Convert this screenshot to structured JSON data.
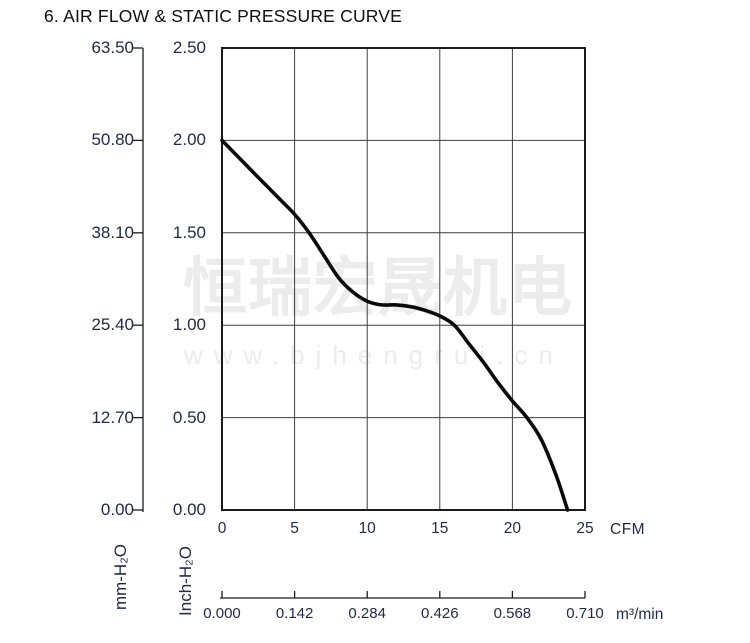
{
  "title": "6. AIR FLOW & STATIC PRESSURE CURVE",
  "watermark": {
    "line1": "恒瑞宏晟机电",
    "line2": "www.bjhengrui.cn"
  },
  "colors": {
    "text": "#222b47",
    "axis_line": "#1c1c1c",
    "grid_line": "#3f3f3f",
    "curve": "#0a0a0a",
    "watermark": "#ececec"
  },
  "chart_data": {
    "type": "line",
    "title": "6. AIR FLOW & STATIC PRESSURE CURVE",
    "grid": true,
    "legend": false,
    "x_axis_primary": {
      "label": "CFM",
      "ticks": [
        "0",
        "5",
        "10",
        "15",
        "20",
        "25"
      ],
      "range": [
        0,
        25
      ]
    },
    "x_axis_secondary": {
      "label": "m³/min",
      "ticks": [
        "0.000",
        "0.142",
        "0.284",
        "0.426",
        "0.568",
        "0.710"
      ],
      "range": [
        0,
        0.71
      ]
    },
    "y_axis_primary": {
      "label": "Inch-H₂O",
      "ticks": [
        "2.50",
        "2.00",
        "1.50",
        "1.00",
        "0.50",
        "0.00"
      ],
      "range": [
        0,
        2.5
      ]
    },
    "y_axis_secondary": {
      "label": "mm-H₂O",
      "ticks": [
        "63.50",
        "50.80",
        "38.10",
        "25.40",
        "12.70",
        "0.00"
      ],
      "range": [
        0,
        63.5
      ]
    },
    "series": [
      {
        "name": "static-pressure-curve",
        "x": [
          0,
          1,
          2,
          3,
          4,
          5,
          6,
          7,
          8,
          9,
          10,
          11,
          12,
          13,
          14,
          15,
          16,
          17,
          18,
          19,
          20,
          21,
          22,
          23,
          23.8
        ],
        "y": [
          2.0,
          1.92,
          1.84,
          1.76,
          1.68,
          1.6,
          1.5,
          1.38,
          1.26,
          1.18,
          1.13,
          1.11,
          1.11,
          1.1,
          1.08,
          1.05,
          1.0,
          0.9,
          0.8,
          0.69,
          0.59,
          0.5,
          0.38,
          0.19,
          0.0
        ]
      }
    ]
  }
}
